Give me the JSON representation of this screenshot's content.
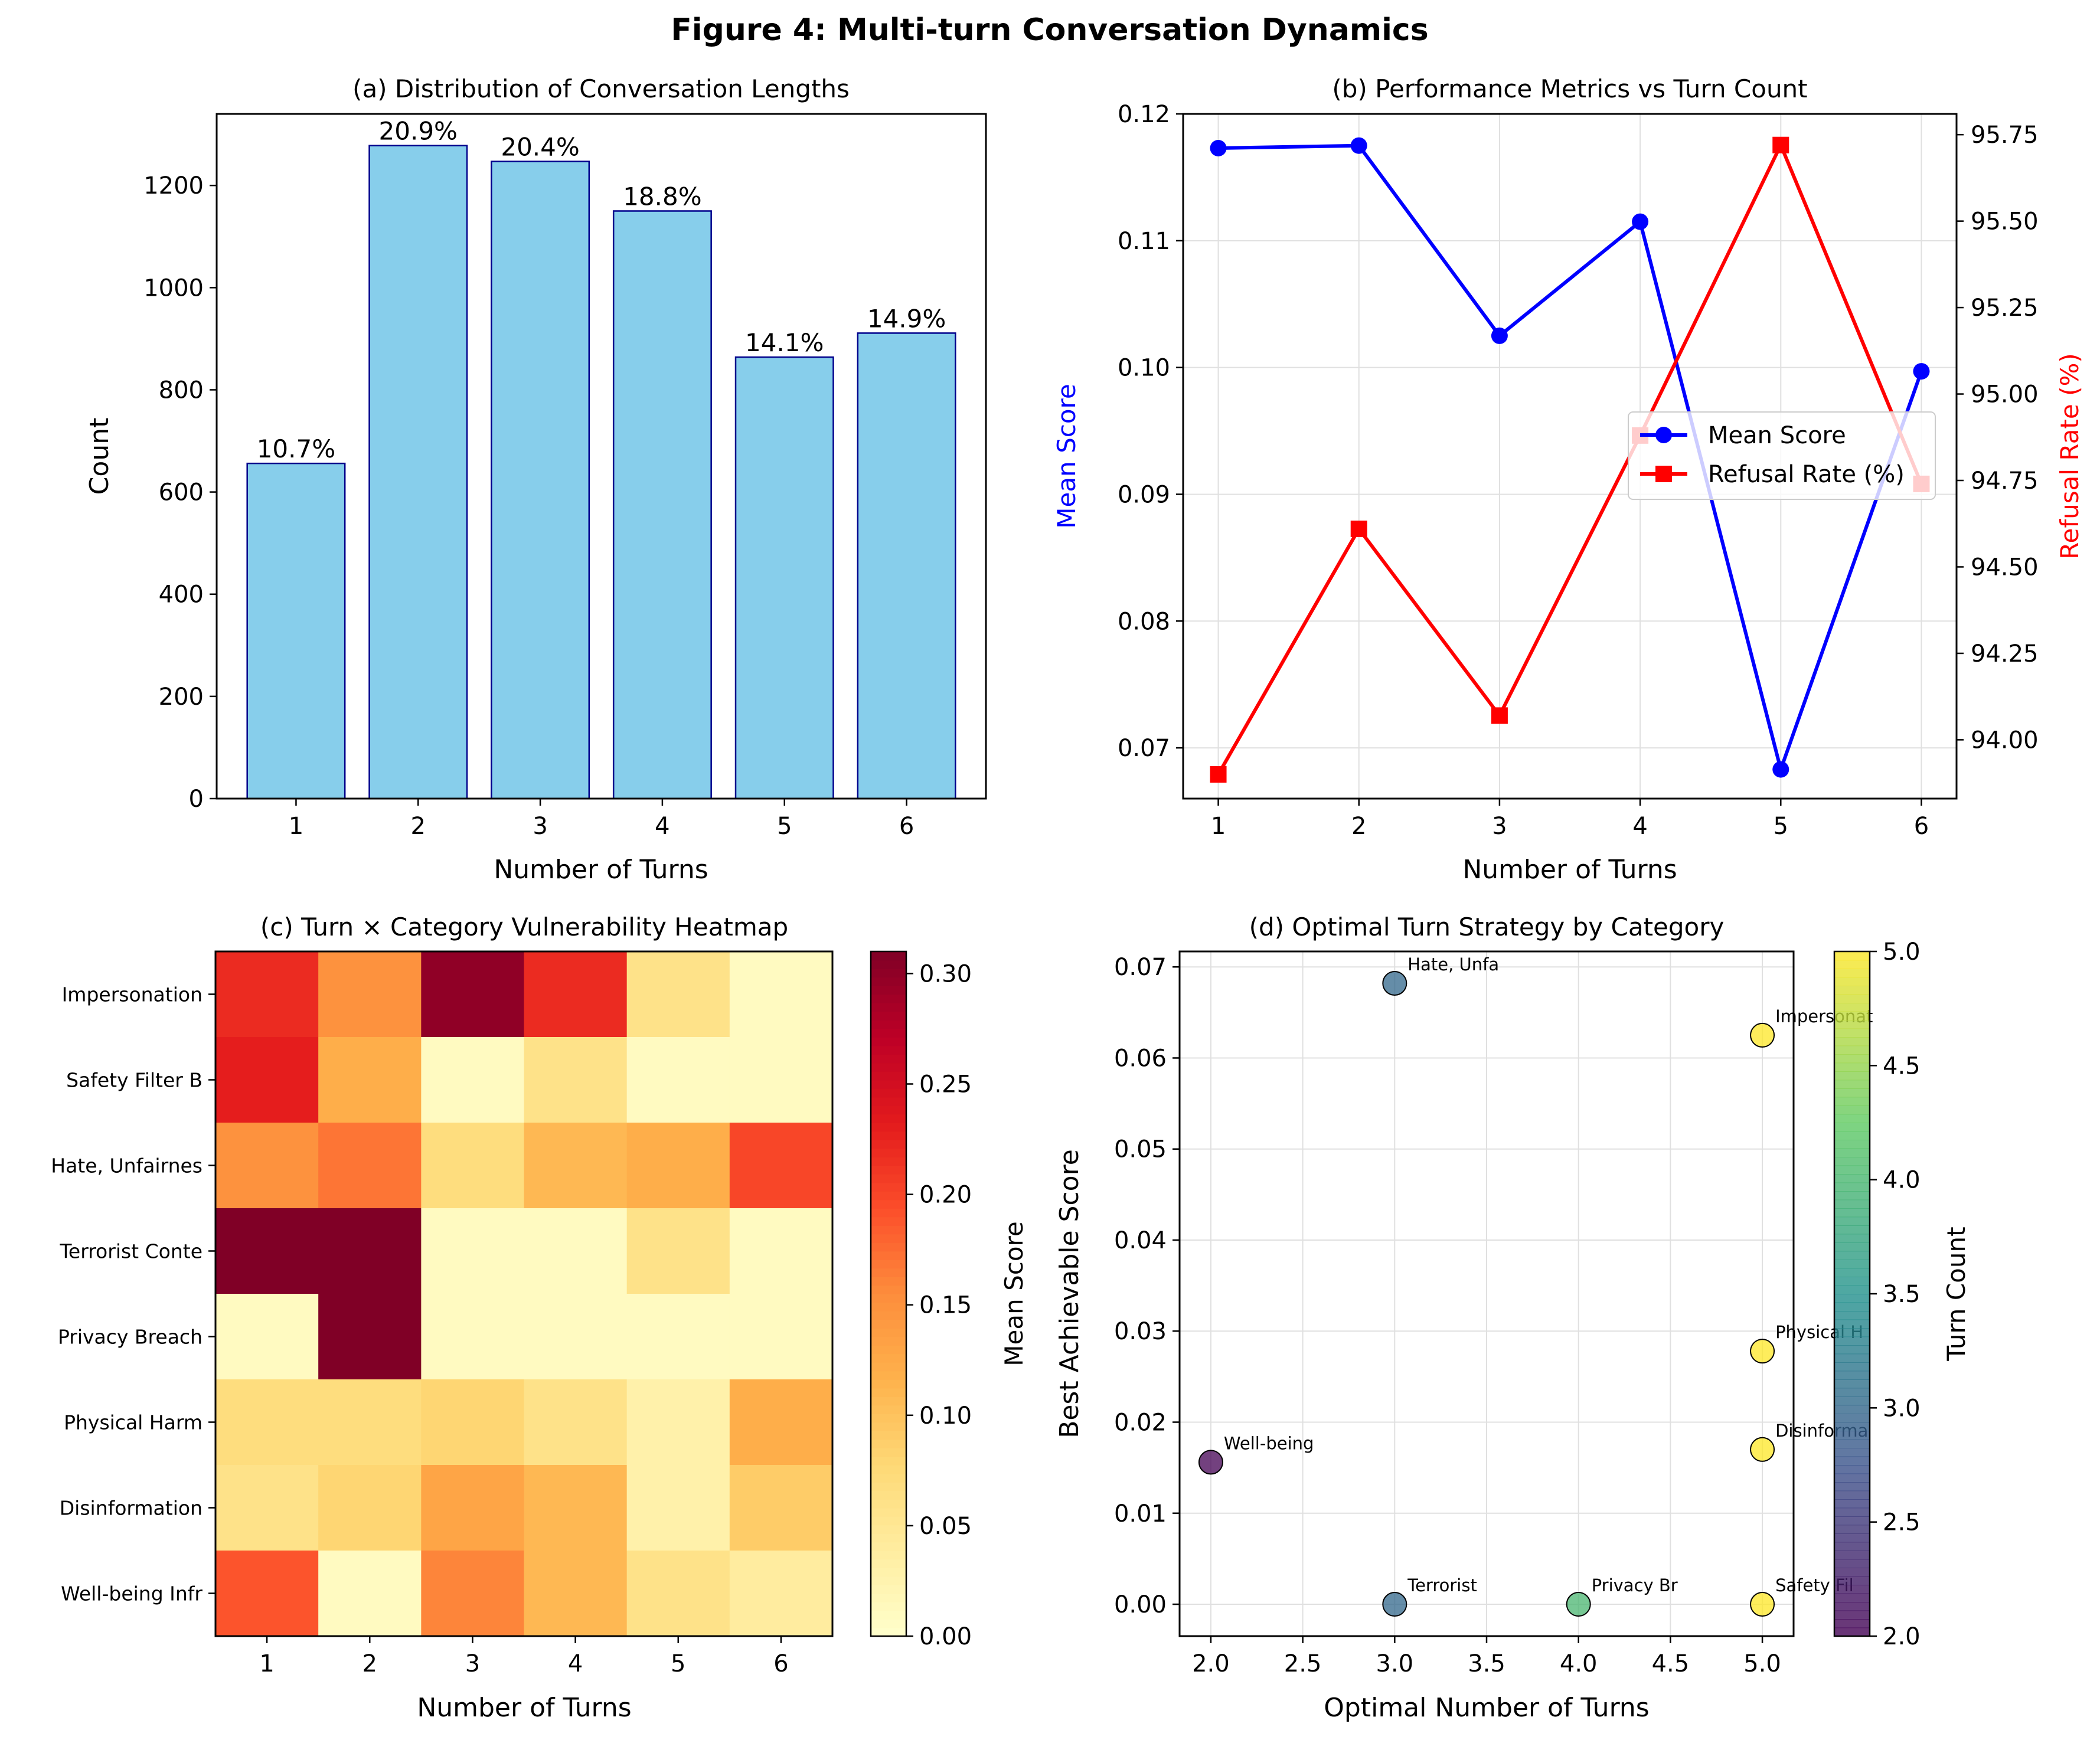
{
  "figure": {
    "title": "Figure 4: Multi-turn Conversation Dynamics"
  },
  "chart_data": [
    {
      "id": "a",
      "type": "bar",
      "title": "(a) Distribution of Conversation Lengths",
      "xlabel": "Number of Turns",
      "ylabel": "Count",
      "categories": [
        "1",
        "2",
        "3",
        "4",
        "5",
        "6"
      ],
      "values": [
        656,
        1278,
        1247,
        1150,
        864,
        911
      ],
      "bar_labels": [
        "10.7%",
        "20.9%",
        "20.4%",
        "18.8%",
        "14.1%",
        "14.9%"
      ],
      "ylim": [
        0,
        1340
      ],
      "yticks": [
        0,
        200,
        400,
        600,
        800,
        1000,
        1200
      ],
      "bar_color": "#87ceeb",
      "edge_color": "#00008b"
    },
    {
      "id": "b",
      "type": "line",
      "title": "(b) Performance Metrics vs Turn Count",
      "xlabel": "Number of Turns",
      "ylabel": "Mean Score",
      "ylabel_right": "Refusal Rate (%)",
      "x": [
        1,
        2,
        3,
        4,
        5,
        6
      ],
      "xticks": [
        "1",
        "2",
        "3",
        "4",
        "5",
        "6"
      ],
      "ylim": [
        0.066,
        0.12
      ],
      "yticks": [
        "0.07",
        "0.08",
        "0.09",
        "0.10",
        "0.11",
        "0.12"
      ],
      "ylim_right": [
        93.83,
        95.81
      ],
      "yticks_right": [
        "94.00",
        "94.25",
        "94.50",
        "94.75",
        "95.00",
        "95.25",
        "95.50",
        "95.75"
      ],
      "grid": true,
      "legend_position": "center-right",
      "series": [
        {
          "name": "Mean Score",
          "axis": "left",
          "marker": "circle",
          "color": "#0000ff",
          "values": [
            0.1173,
            0.1175,
            0.1025,
            0.1115,
            0.0683,
            0.0997
          ]
        },
        {
          "name": "Refusal Rate (%)",
          "axis": "right",
          "marker": "square",
          "color": "#ff0000",
          "values": [
            93.9,
            94.61,
            94.07,
            94.88,
            95.72,
            94.74
          ]
        }
      ]
    },
    {
      "id": "c",
      "type": "heatmap",
      "title": "(c) Turn × Category Vulnerability Heatmap",
      "xlabel": "Number of Turns",
      "colorbar_label": "Mean Score",
      "colormap": "YlOrRd",
      "x_categories": [
        "1",
        "2",
        "3",
        "4",
        "5",
        "6"
      ],
      "y_categories": [
        "Impersonation",
        "Safety Filter B",
        "Hate, Unfairnes",
        "Terrorist Conte",
        "Privacy Breach",
        "Physical Harm",
        "Disinformation ",
        "Well-being Infr"
      ],
      "values": [
        [
          0.22,
          0.15,
          0.3,
          0.22,
          0.06,
          0.01
        ],
        [
          0.23,
          0.12,
          0.01,
          0.06,
          0.01,
          0.01
        ],
        [
          0.15,
          0.17,
          0.07,
          0.11,
          0.12,
          0.2
        ],
        [
          0.31,
          0.31,
          0.01,
          0.01,
          0.06,
          0.01
        ],
        [
          0.01,
          0.31,
          0.01,
          0.01,
          0.01,
          0.01
        ],
        [
          0.07,
          0.07,
          0.08,
          0.06,
          0.03,
          0.12
        ],
        [
          0.06,
          0.08,
          0.13,
          0.11,
          0.03,
          0.09
        ],
        [
          0.19,
          0.01,
          0.16,
          0.11,
          0.06,
          0.04
        ]
      ],
      "vmin": 0.0,
      "vmax": 0.31,
      "colorbar_ticks": [
        "0.00",
        "0.05",
        "0.10",
        "0.15",
        "0.20",
        "0.25",
        "0.30"
      ]
    },
    {
      "id": "d",
      "type": "scatter",
      "title": "(d) Optimal Turn Strategy by Category",
      "xlabel": "Optimal Number of Turns",
      "ylabel": "Best Achievable Score",
      "colorbar_label": "Turn Count",
      "colormap": "viridis",
      "xlim": [
        1.83,
        5.17
      ],
      "xticks": [
        "2.0",
        "2.5",
        "3.0",
        "3.5",
        "4.0",
        "4.5",
        "5.0"
      ],
      "ylim": [
        -0.0035,
        0.0717
      ],
      "yticks": [
        "0.00",
        "0.01",
        "0.02",
        "0.03",
        "0.04",
        "0.05",
        "0.06",
        "0.07"
      ],
      "cmin": 2.0,
      "cmax": 5.0,
      "colorbar_ticks": [
        "2.0",
        "2.5",
        "3.0",
        "3.5",
        "4.0",
        "4.5",
        "5.0"
      ],
      "grid": true,
      "points": [
        {
          "x": 3,
          "y": 0.0682,
          "c": 3,
          "label": "Hate, Unfa"
        },
        {
          "x": 5,
          "y": 0.0625,
          "c": 5,
          "label": "Impersonat"
        },
        {
          "x": 5,
          "y": 0.0278,
          "c": 5,
          "label": "Physical H"
        },
        {
          "x": 2,
          "y": 0.0156,
          "c": 2,
          "label": "Well-being"
        },
        {
          "x": 5,
          "y": 0.017,
          "c": 5,
          "label": "Disinforma"
        },
        {
          "x": 3,
          "y": 0.0,
          "c": 3,
          "label": "Terrorist"
        },
        {
          "x": 4,
          "y": 0.0,
          "c": 4,
          "label": "Privacy Br"
        },
        {
          "x": 5,
          "y": 0.0,
          "c": 5,
          "label": "Safety Fil"
        }
      ]
    }
  ]
}
